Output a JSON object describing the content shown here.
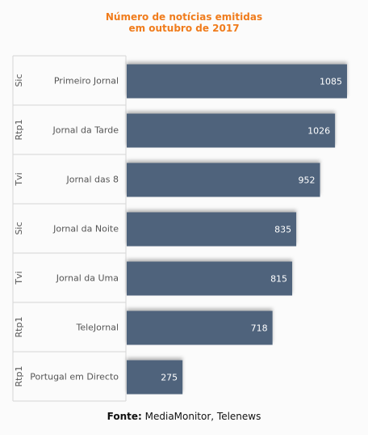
{
  "chart_data": {
    "type": "bar",
    "orientation": "horizontal",
    "title_lines": [
      "Número de notícias emitidas",
      "em outubro de 2017"
    ],
    "categories": [
      {
        "group": "Sic",
        "label": "Primeiro Jornal",
        "value": 1085
      },
      {
        "group": "Rtp1",
        "label": "Jornal da Tarde",
        "value": 1026
      },
      {
        "group": "Tvi",
        "label": "Jornal das 8",
        "value": 952
      },
      {
        "group": "Sic",
        "label": "Jornal da Noite",
        "value": 835
      },
      {
        "group": "Tvi",
        "label": "Jornal da Uma",
        "value": 815
      },
      {
        "group": "Rtp1",
        "label": "TeleJornal",
        "value": 718
      },
      {
        "group": "Rtp1",
        "label": "Portugal em Directo",
        "value": 275
      }
    ],
    "xlim": [
      0,
      1085
    ],
    "grid": false,
    "bar_color": "#4f647c",
    "value_label_color": "#ffffff"
  },
  "source": {
    "label": "Fonte:",
    "text": "MediaMonitor, Telenews"
  }
}
